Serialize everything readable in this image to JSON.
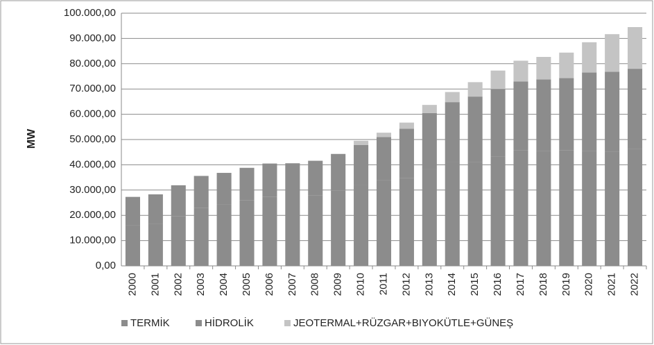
{
  "chart_data": {
    "type": "stacked_bar",
    "ylabel": "MW",
    "categories": [
      "2000",
      "2001",
      "2002",
      "2003",
      "2004",
      "2005",
      "2006",
      "2007",
      "2008",
      "2009",
      "2010",
      "2011",
      "2012",
      "2013",
      "2014",
      "2015",
      "2016",
      "2017",
      "2018",
      "2019",
      "2020",
      "2021",
      "2022"
    ],
    "series": [
      {
        "name": "TERMİK",
        "color": "#8c8c8c",
        "values": [
          16100,
          16600,
          19700,
          23000,
          24200,
          25900,
          27400,
          27200,
          27800,
          29700,
          32000,
          33900,
          34700,
          38200,
          41200,
          41100,
          43300,
          45700,
          45500,
          45800,
          45500,
          45300,
          46400
        ]
      },
      {
        "name": "HİDROLİK",
        "color": "#8c8c8c",
        "values": [
          11200,
          11700,
          12200,
          12600,
          12600,
          12900,
          13100,
          13400,
          13800,
          14600,
          15800,
          17100,
          19600,
          22300,
          23600,
          25900,
          26700,
          27300,
          28300,
          28500,
          31000,
          31500,
          31600
        ]
      },
      {
        "name": "JEOTERMAL+RÜZGAR+BIYOKÜTLE+GÜNEŞ",
        "color": "#c4c4c4",
        "values": [
          0,
          0,
          0,
          0,
          0,
          0,
          0,
          0,
          0,
          0,
          1700,
          1700,
          2400,
          3200,
          4000,
          5700,
          7300,
          8200,
          8900,
          10100,
          12000,
          14900,
          16500
        ]
      }
    ],
    "ylim": [
      0,
      100000
    ],
    "yticks": [
      {
        "value": 0,
        "label": "0,00"
      },
      {
        "value": 10000,
        "label": "10.000,00"
      },
      {
        "value": 20000,
        "label": "20.000,00"
      },
      {
        "value": 30000,
        "label": "30.000,00"
      },
      {
        "value": 40000,
        "label": "40.000,00"
      },
      {
        "value": 50000,
        "label": "50.000,00"
      },
      {
        "value": 60000,
        "label": "60.000,00"
      },
      {
        "value": 70000,
        "label": "70.000,00"
      },
      {
        "value": 80000,
        "label": "80.000,00"
      },
      {
        "value": 90000,
        "label": "90.000,00"
      },
      {
        "value": 100000,
        "label": "100.000,00"
      }
    ],
    "grid": true
  }
}
